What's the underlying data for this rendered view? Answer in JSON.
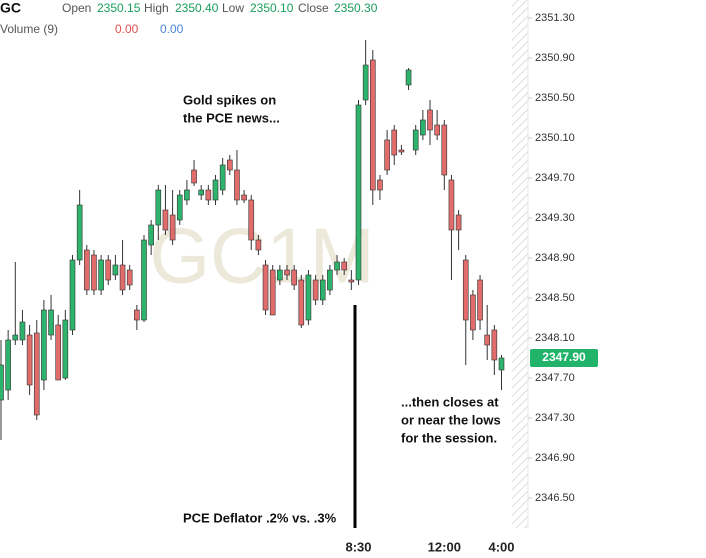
{
  "header": {
    "symbol": "GC",
    "fields": [
      {
        "label": "Open",
        "value": "2350.15"
      },
      {
        "label": "High",
        "value": "2350.40"
      },
      {
        "label": "Low",
        "value": "2350.10"
      },
      {
        "label": "Close",
        "value": "2350.30"
      }
    ],
    "volume": {
      "label": "Volume (9)",
      "values": [
        "0.00",
        "0.00"
      ]
    }
  },
  "chart_data": {
    "type": "candlestick",
    "watermark": "GC1M",
    "up_color": "#2db36c",
    "down_color": "#e06c6c",
    "categories": [
      null,
      null,
      null,
      null,
      null,
      null,
      null,
      null,
      null,
      null,
      null,
      null,
      null,
      null,
      null,
      null,
      null,
      null,
      null,
      null,
      null,
      null,
      null,
      null,
      null,
      null,
      null,
      null,
      null,
      null,
      null,
      null,
      null,
      null,
      null,
      null,
      null,
      null,
      null,
      null,
      null,
      null,
      null,
      null,
      null,
      null,
      null,
      null,
      null,
      null,
      "8:30",
      null,
      null,
      null,
      null,
      null,
      null,
      null,
      null,
      null,
      null,
      null,
      "12:00",
      null,
      null,
      null,
      null,
      null,
      null,
      null,
      "4:00"
    ],
    "open": [
      2347.48,
      2347.58,
      2348.08,
      2348.08,
      2348.13,
      2348.15,
      2347.68,
      2348.13,
      2348.23,
      2347.7,
      2348.18,
      2348.88,
      2348.98,
      2348.93,
      2348.58,
      2348.88,
      2348.73,
      2348.83,
      2348.78,
      2348.38,
      2348.28,
      2349.03,
      2349.23,
      2349.38,
      2349.33,
      2349.28,
      2349.48,
      2349.78,
      2349.53,
      2349.58,
      2349.48,
      2349.58,
      2349.88,
      2349.78,
      2349.53,
      2349.48,
      2349.08,
      2348.83,
      2348.78,
      2348.68,
      2348.78,
      2348.78,
      2348.68,
      2348.28,
      2348.68,
      2348.48,
      2348.58,
      2348.78,
      2348.86,
      2348.68,
      2348.68,
      2350.48,
      2350.88,
      2349.68,
      2350.08,
      2350.18,
      2349.98,
      2350.63,
      2349.98,
      2350.13,
      2350.38,
      2350.23,
      2350.23,
      2349.68,
      2349.33,
      2348.88,
      2348.53,
      2348.68,
      2348.13,
      2348.18,
      2347.78
    ],
    "close": [
      2347.83,
      2348.08,
      2348.13,
      2348.26,
      2347.63,
      2347.33,
      2348.38,
      2348.38,
      2347.68,
      2348.28,
      2348.88,
      2349.43,
      2348.58,
      2348.58,
      2348.88,
      2348.68,
      2348.83,
      2348.58,
      2348.63,
      2348.28,
      2349.08,
      2349.23,
      2349.58,
      2349.18,
      2349.08,
      2349.53,
      2349.58,
      2349.65,
      2349.58,
      2349.48,
      2349.68,
      2349.83,
      2349.78,
      2349.48,
      2349.48,
      2349.08,
      2348.98,
      2348.38,
      2348.33,
      2348.78,
      2348.73,
      2348.63,
      2348.23,
      2348.73,
      2348.48,
      2348.68,
      2348.78,
      2348.86,
      2348.78,
      2348.66,
      2350.43,
      2350.83,
      2349.58,
      2349.58,
      2349.78,
      2349.93,
      2349.96,
      2350.78,
      2350.18,
      2350.28,
      2350.18,
      2350.13,
      2349.73,
      2349.18,
      2349.18,
      2348.28,
      2348.18,
      2348.28,
      2348.03,
      2347.88,
      2347.9
    ],
    "high": [
      2348.08,
      2348.18,
      2348.86,
      2348.38,
      2348.23,
      2348.28,
      2348.48,
      2348.53,
      2348.33,
      2348.38,
      2348.93,
      2349.58,
      2349.03,
      2348.98,
      2348.93,
      2348.93,
      2348.93,
      2349.08,
      2348.83,
      2348.43,
      2349.13,
      2349.28,
      2349.63,
      2349.63,
      2349.58,
      2349.58,
      2349.68,
      2349.88,
      2349.63,
      2349.63,
      2349.73,
      2349.9,
      2349.93,
      2349.98,
      2349.58,
      2349.53,
      2349.13,
      2348.88,
      2348.83,
      2348.83,
      2348.83,
      2348.83,
      2348.73,
      2348.78,
      2348.73,
      2348.73,
      2348.83,
      2348.93,
      2348.9,
      2348.78,
      2350.48,
      2351.08,
      2350.98,
      2349.73,
      2350.18,
      2350.23,
      2350.03,
      2350.8,
      2350.23,
      2350.38,
      2350.48,
      2350.38,
      2350.28,
      2349.73,
      2349.38,
      2348.93,
      2348.58,
      2348.73,
      2348.43,
      2348.23,
      2347.93
    ],
    "low": [
      2347.08,
      2347.48,
      2348.03,
      2348.03,
      2347.53,
      2347.28,
      2347.58,
      2348.08,
      2347.68,
      2347.68,
      2348.13,
      2348.83,
      2348.53,
      2348.53,
      2348.53,
      2348.63,
      2348.68,
      2348.53,
      2348.58,
      2348.18,
      2348.26,
      2348.93,
      2349.08,
      2349.13,
      2349.03,
      2349.23,
      2349.43,
      2349.62,
      2349.48,
      2349.43,
      2349.43,
      2349.53,
      2349.73,
      2349.43,
      2349.45,
      2348.98,
      2348.93,
      2348.33,
      2348.33,
      2348.63,
      2348.68,
      2348.58,
      2348.2,
      2348.23,
      2348.43,
      2348.43,
      2348.53,
      2348.73,
      2348.73,
      2348.58,
      2348.63,
      2350.43,
      2349.43,
      2349.48,
      2349.73,
      2349.83,
      2349.93,
      2350.58,
      2349.93,
      2350.08,
      2350.03,
      2350.08,
      2349.58,
      2348.68,
      2348.98,
      2347.83,
      2348.08,
      2348.18,
      2347.88,
      2347.73,
      2347.58
    ],
    "ylim": [
      2346.2,
      2351.48
    ],
    "yticks": [
      {
        "value": 2351.3,
        "label": "2351.30"
      },
      {
        "value": 2350.9,
        "label": "2350.90"
      },
      {
        "value": 2350.5,
        "label": "2350.50"
      },
      {
        "value": 2350.1,
        "label": "2350.10"
      },
      {
        "value": 2349.7,
        "label": "2349.70"
      },
      {
        "value": 2349.3,
        "label": "2349.30"
      },
      {
        "value": 2348.9,
        "label": "2348.90"
      },
      {
        "value": 2348.5,
        "label": "2348.50"
      },
      {
        "value": 2348.1,
        "label": "2348.10"
      },
      {
        "value": 2347.7,
        "label": "2347.70"
      },
      {
        "value": 2347.3,
        "label": "2347.30"
      },
      {
        "value": 2346.9,
        "label": "2346.90"
      },
      {
        "value": 2346.5,
        "label": "2346.50"
      }
    ],
    "last_price": {
      "value": 2347.9,
      "label": "2347.90"
    },
    "grid": false,
    "annotations": [
      [
        "Gold spikes on",
        "the PCE news..."
      ],
      [
        "...then closes at",
        "or near the lows",
        "for the session."
      ],
      [
        "PCE Deflator .2% vs. .3%"
      ]
    ]
  }
}
